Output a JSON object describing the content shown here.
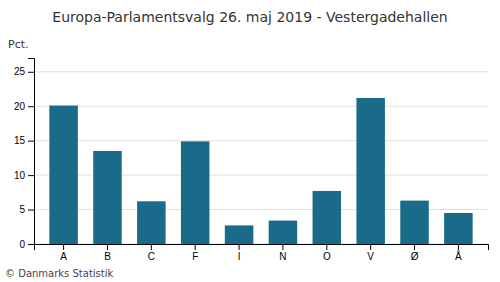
{
  "chart_data": {
    "type": "bar",
    "title": "Europa-Parlamentsvalg 26. maj 2019 - Vestergadehallen",
    "categories": [
      "A",
      "B",
      "C",
      "F",
      "I",
      "N",
      "O",
      "V",
      "Ø",
      "Å"
    ],
    "values": [
      20.1,
      13.5,
      6.2,
      14.9,
      2.7,
      3.4,
      7.7,
      21.2,
      6.3,
      4.5
    ],
    "color": "#1a6b8a",
    "ylabel": "Pct.",
    "ylim": [
      0,
      27
    ],
    "yticks": [
      0,
      5,
      10,
      15,
      20,
      25
    ],
    "grid": true,
    "footer": "© Danmarks Statistik"
  }
}
